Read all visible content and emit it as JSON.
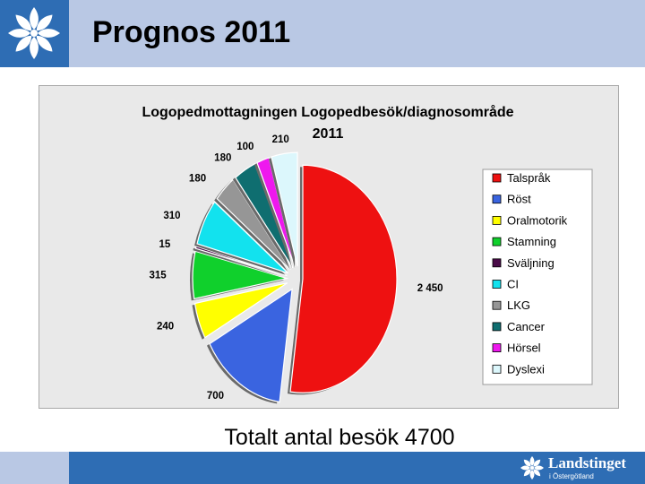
{
  "slide": {
    "title": "Prognos 2011",
    "total_text": "Totalt antal besök 4700"
  },
  "footer": {
    "org_name": "Landstinget",
    "org_sub": "i Östergötland"
  },
  "colors": {
    "header_band": "#b9c8e4",
    "brand_blue": "#2e6db4",
    "chart_background": "#e9e9e9"
  },
  "chart_data": {
    "type": "pie",
    "title_lines": [
      "Logopedmottagningen Logopedbesök/diagnosområde",
      "2011"
    ],
    "legend_position": "right",
    "exploded": true,
    "slices": [
      {
        "name": "Talspråk",
        "label": "2 450",
        "value": 2450,
        "color": "#ee1111"
      },
      {
        "name": "Röst",
        "label": "700",
        "value": 700,
        "color": "#3a64e0"
      },
      {
        "name": "Oralmotorik",
        "label": "240",
        "value": 240,
        "color": "#ffff00"
      },
      {
        "name": "Stamning",
        "label": "315",
        "value": 315,
        "color": "#10d02c"
      },
      {
        "name": "Sväljning",
        "label": "15",
        "value": 15,
        "color": "#4a0b48"
      },
      {
        "name": "CI",
        "label": "310",
        "value": 310,
        "color": "#12e2ee"
      },
      {
        "name": "LKG",
        "label": "180",
        "value": 180,
        "color": "#969696"
      },
      {
        "name": "Cancer",
        "label": "180",
        "value": 180,
        "color": "#0f6e70"
      },
      {
        "name": "Hörsel",
        "label": "100",
        "value": 100,
        "color": "#ee18ee"
      },
      {
        "name": "Dyslexi",
        "label": "210",
        "value": 210,
        "color": "#dcf7fc"
      }
    ]
  }
}
